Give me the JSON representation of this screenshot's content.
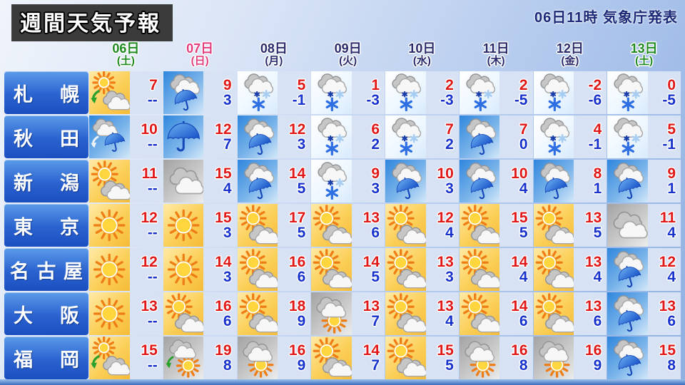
{
  "title": "週間天気予報",
  "issued": "06日11時 気象庁発表",
  "colors": {
    "high_temp": "#e01818",
    "low_temp": "#1733cc",
    "saturday_green": "#1f8a1f",
    "sunday_pink": "#e23c7d",
    "weekday_navy": "#2b2b6b",
    "city_label_blue": "#2a62cf",
    "title_box_gray": "#3b3b3b"
  },
  "chart_data": {
    "type": "table",
    "title": "週間天気予報",
    "issued": "06日11時 気象庁発表",
    "columns": [
      {
        "day": "06日",
        "dow": "(土)",
        "color": "#1f8a1f"
      },
      {
        "day": "07日",
        "dow": "(日)",
        "color": "#e23c7d"
      },
      {
        "day": "08日",
        "dow": "(月)",
        "color": "#2b2b6b"
      },
      {
        "day": "09日",
        "dow": "(火)",
        "color": "#2b2b6b"
      },
      {
        "day": "10日",
        "dow": "(水)",
        "color": "#2b2b6b"
      },
      {
        "day": "11日",
        "dow": "(木)",
        "color": "#2b2b6b"
      },
      {
        "day": "12日",
        "dow": "(金)",
        "color": "#2b2b6b"
      },
      {
        "day": "13日",
        "dow": "(土)",
        "color": "#1f8a1f"
      }
    ],
    "rows": [
      {
        "city": "札幌",
        "days": [
          {
            "icon": "sun-then-cloud",
            "hi": "7",
            "lo": "--"
          },
          {
            "icon": "rain",
            "hi": "9",
            "lo": "3"
          },
          {
            "icon": "snow",
            "hi": "5",
            "lo": "-1"
          },
          {
            "icon": "snow",
            "hi": "1",
            "lo": "-3"
          },
          {
            "icon": "snow",
            "hi": "2",
            "lo": "-3"
          },
          {
            "icon": "snow",
            "hi": "2",
            "lo": "-5"
          },
          {
            "icon": "snow",
            "hi": "-2",
            "lo": "-6"
          },
          {
            "icon": "snow",
            "hi": "0",
            "lo": "-5"
          }
        ]
      },
      {
        "city": "秋田",
        "days": [
          {
            "icon": "cloud-then-rain",
            "hi": "10",
            "lo": "--"
          },
          {
            "icon": "umbrella",
            "hi": "12",
            "lo": "7"
          },
          {
            "icon": "rain",
            "hi": "12",
            "lo": "3"
          },
          {
            "icon": "snow",
            "hi": "6",
            "lo": "2"
          },
          {
            "icon": "snow",
            "hi": "7",
            "lo": "2"
          },
          {
            "icon": "rain",
            "hi": "7",
            "lo": "0"
          },
          {
            "icon": "snow",
            "hi": "4",
            "lo": "-1"
          },
          {
            "icon": "snow",
            "hi": "5",
            "lo": "-1"
          }
        ]
      },
      {
        "city": "新潟",
        "days": [
          {
            "icon": "sun-cloud",
            "hi": "11",
            "lo": "--"
          },
          {
            "icon": "cloudy",
            "hi": "15",
            "lo": "4"
          },
          {
            "icon": "rain",
            "hi": "14",
            "lo": "5"
          },
          {
            "icon": "snow",
            "hi": "9",
            "lo": "3"
          },
          {
            "icon": "rain",
            "hi": "10",
            "lo": "3"
          },
          {
            "icon": "rain",
            "hi": "10",
            "lo": "4"
          },
          {
            "icon": "rain",
            "hi": "8",
            "lo": "1"
          },
          {
            "icon": "rain",
            "hi": "9",
            "lo": "1"
          }
        ]
      },
      {
        "city": "東京",
        "days": [
          {
            "icon": "sunny",
            "hi": "12",
            "lo": "--"
          },
          {
            "icon": "sunny",
            "hi": "15",
            "lo": "3"
          },
          {
            "icon": "sun-cloud",
            "hi": "17",
            "lo": "5"
          },
          {
            "icon": "sun-cloud",
            "hi": "13",
            "lo": "6"
          },
          {
            "icon": "sun-cloud",
            "hi": "12",
            "lo": "4"
          },
          {
            "icon": "sun-cloud",
            "hi": "15",
            "lo": "5"
          },
          {
            "icon": "sun-cloud",
            "hi": "13",
            "lo": "5"
          },
          {
            "icon": "cloudy",
            "hi": "11",
            "lo": "4"
          }
        ]
      },
      {
        "city": "名古屋",
        "days": [
          {
            "icon": "sunny",
            "hi": "12",
            "lo": "--"
          },
          {
            "icon": "sunny",
            "hi": "14",
            "lo": "3"
          },
          {
            "icon": "sun-cloud",
            "hi": "16",
            "lo": "6"
          },
          {
            "icon": "sun-cloud",
            "hi": "14",
            "lo": "5"
          },
          {
            "icon": "sun-cloud",
            "hi": "13",
            "lo": "3"
          },
          {
            "icon": "sun-cloud",
            "hi": "14",
            "lo": "4"
          },
          {
            "icon": "sun-cloud",
            "hi": "13",
            "lo": "4"
          },
          {
            "icon": "rain",
            "hi": "12",
            "lo": "4"
          }
        ]
      },
      {
        "city": "大阪",
        "days": [
          {
            "icon": "sunny",
            "hi": "13",
            "lo": "--"
          },
          {
            "icon": "sun-cloud",
            "hi": "16",
            "lo": "6"
          },
          {
            "icon": "sun-cloud",
            "hi": "18",
            "lo": "9"
          },
          {
            "icon": "cloud-sun",
            "hi": "13",
            "lo": "7"
          },
          {
            "icon": "sun-cloud",
            "hi": "13",
            "lo": "4"
          },
          {
            "icon": "sun-cloud",
            "hi": "14",
            "lo": "6"
          },
          {
            "icon": "sun-cloud",
            "hi": "13",
            "lo": "6"
          },
          {
            "icon": "rain",
            "hi": "13",
            "lo": "6"
          }
        ]
      },
      {
        "city": "福岡",
        "days": [
          {
            "icon": "sun-then-cloud",
            "hi": "15",
            "lo": "--"
          },
          {
            "icon": "cloud-then-sun",
            "hi": "19",
            "lo": "8"
          },
          {
            "icon": "cloud-sun",
            "hi": "16",
            "lo": "9"
          },
          {
            "icon": "sun-cloud",
            "hi": "14",
            "lo": "7"
          },
          {
            "icon": "sun-cloud",
            "hi": "15",
            "lo": "5"
          },
          {
            "icon": "cloud-sun",
            "hi": "16",
            "lo": "8"
          },
          {
            "icon": "cloud-sun",
            "hi": "16",
            "lo": "9"
          },
          {
            "icon": "rain",
            "hi": "15",
            "lo": "8"
          }
        ]
      }
    ]
  }
}
